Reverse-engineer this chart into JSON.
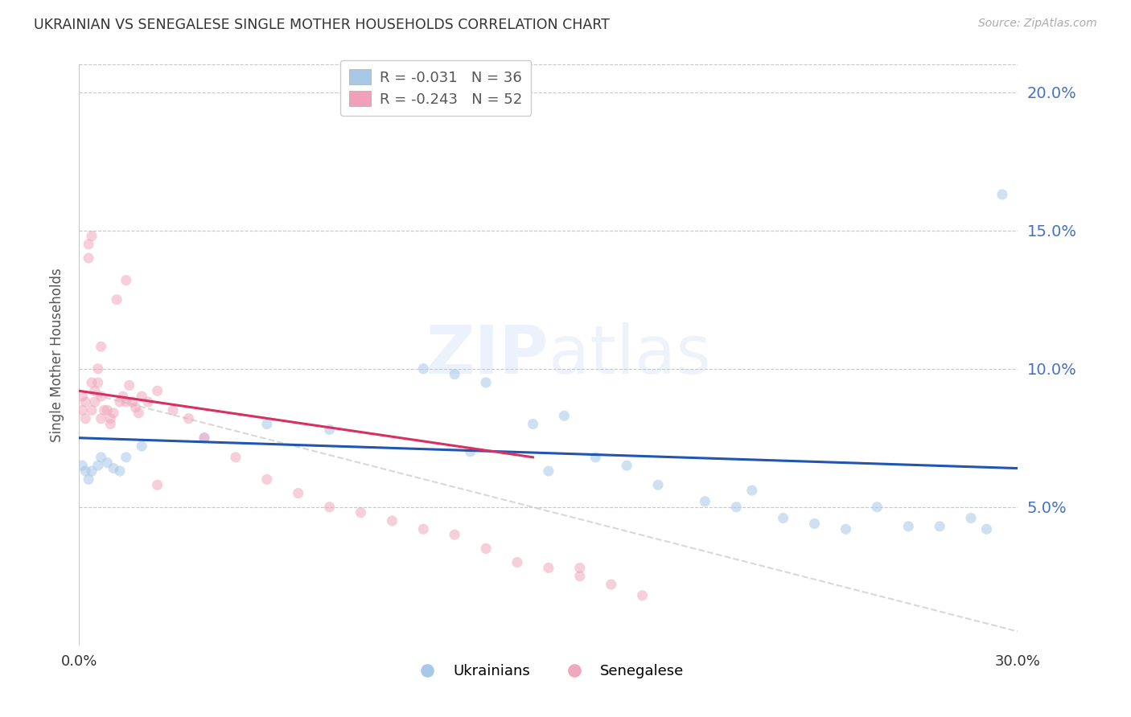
{
  "title": "UKRAINIAN VS SENEGALESE SINGLE MOTHER HOUSEHOLDS CORRELATION CHART",
  "source": "Source: ZipAtlas.com",
  "ylabel": "Single Mother Households",
  "xlim": [
    0.0,
    0.3
  ],
  "ylim": [
    0.0,
    0.21
  ],
  "yticks": [
    0.05,
    0.1,
    0.15,
    0.2
  ],
  "xticks": [
    0.0,
    0.3
  ],
  "watermark": "ZIPatlas",
  "legend_r_vals": [
    "-0.031",
    "-0.243"
  ],
  "legend_n_vals": [
    "36",
    "52"
  ],
  "legend_colors": [
    "#a8c8e8",
    "#f0a0b8"
  ],
  "bottom_legend": [
    "Ukrainians",
    "Senegalese"
  ],
  "ukrainian_x": [
    0.001,
    0.002,
    0.003,
    0.004,
    0.006,
    0.007,
    0.009,
    0.011,
    0.013,
    0.015,
    0.02,
    0.04,
    0.06,
    0.08,
    0.11,
    0.12,
    0.13,
    0.145,
    0.155,
    0.165,
    0.175,
    0.185,
    0.2,
    0.21,
    0.215,
    0.225,
    0.235,
    0.245,
    0.255,
    0.265,
    0.275,
    0.285,
    0.29,
    0.295,
    0.125,
    0.15
  ],
  "ukrainian_y": [
    0.065,
    0.063,
    0.06,
    0.063,
    0.065,
    0.068,
    0.066,
    0.064,
    0.063,
    0.068,
    0.072,
    0.075,
    0.08,
    0.078,
    0.1,
    0.098,
    0.095,
    0.08,
    0.083,
    0.068,
    0.065,
    0.058,
    0.052,
    0.05,
    0.056,
    0.046,
    0.044,
    0.042,
    0.05,
    0.043,
    0.043,
    0.046,
    0.042,
    0.163,
    0.07,
    0.063
  ],
  "senegalese_x": [
    0.001,
    0.001,
    0.002,
    0.002,
    0.003,
    0.003,
    0.004,
    0.004,
    0.005,
    0.005,
    0.006,
    0.006,
    0.007,
    0.007,
    0.008,
    0.009,
    0.01,
    0.011,
    0.012,
    0.013,
    0.014,
    0.015,
    0.016,
    0.017,
    0.018,
    0.019,
    0.02,
    0.022,
    0.025,
    0.03,
    0.035,
    0.04,
    0.05,
    0.06,
    0.07,
    0.08,
    0.09,
    0.1,
    0.11,
    0.12,
    0.13,
    0.14,
    0.15,
    0.16,
    0.17,
    0.18,
    0.004,
    0.007,
    0.01,
    0.015,
    0.025,
    0.16
  ],
  "senegalese_y": [
    0.09,
    0.085,
    0.088,
    0.082,
    0.145,
    0.14,
    0.148,
    0.095,
    0.092,
    0.088,
    0.1,
    0.095,
    0.108,
    0.09,
    0.085,
    0.085,
    0.082,
    0.084,
    0.125,
    0.088,
    0.09,
    0.132,
    0.094,
    0.088,
    0.086,
    0.084,
    0.09,
    0.088,
    0.092,
    0.085,
    0.082,
    0.075,
    0.068,
    0.06,
    0.055,
    0.05,
    0.048,
    0.045,
    0.042,
    0.04,
    0.035,
    0.03,
    0.028,
    0.025,
    0.022,
    0.018,
    0.085,
    0.082,
    0.08,
    0.088,
    0.058,
    0.028
  ],
  "blue_line_x": [
    0.0,
    0.3
  ],
  "blue_line_y": [
    0.075,
    0.064
  ],
  "pink_line_x": [
    0.0,
    0.145
  ],
  "pink_line_y": [
    0.092,
    0.068
  ],
  "dash_line_x": [
    0.0,
    0.3
  ],
  "dash_line_y": [
    0.092,
    0.005
  ],
  "scatter_color_ukrainian": "#a8c8e8",
  "scatter_color_senegalese": "#f0a8be",
  "line_color_ukrainian": "#2055b0",
  "line_color_senegalese": "#d83060",
  "background_color": "#ffffff",
  "grid_color": "#c8c8c8",
  "title_color": "#333333",
  "axis_label_color": "#555555",
  "right_axis_color": "#4472c4",
  "marker_size": 90,
  "scatter_alpha": 0.55
}
